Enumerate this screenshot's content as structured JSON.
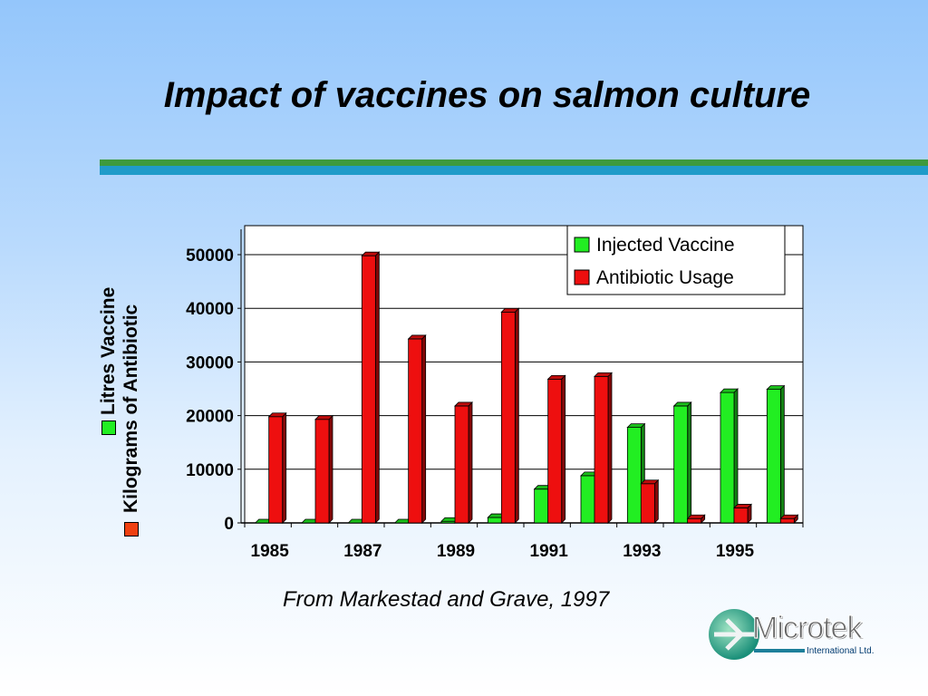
{
  "slide": {
    "title": "Impact of vaccines on salmon culture",
    "source": "From Markestad and Grave, 1997",
    "logo": {
      "name": "Microtek",
      "subtitle": "International Ltd."
    },
    "ylabels": {
      "vaccine": "Litres Vaccine",
      "antibiotic": "Kilograms of Antibiotic"
    }
  },
  "colors": {
    "vaccine": "#22ee22",
    "antibiotic": "#ee0f0f",
    "rule_green": "#3d9a3d",
    "rule_blue": "#1f9bc9"
  },
  "chart_data": {
    "type": "bar",
    "x": [
      1985,
      1986,
      1987,
      1988,
      1989,
      1990,
      1991,
      1992,
      1993,
      1994,
      1995,
      1996
    ],
    "tick_labels": [
      "1985",
      "1987",
      "1989",
      "1991",
      "1993",
      "1995"
    ],
    "yticks": [
      "0",
      "10000",
      "20000",
      "30000",
      "40000",
      "50000"
    ],
    "ylim": [
      0,
      50000
    ],
    "grid": true,
    "legend_position": "top-right",
    "series": [
      {
        "name": "Injected Vaccine",
        "color": "#22ee22",
        "values": [
          0,
          0,
          0,
          0,
          300,
          1000,
          6300,
          8800,
          17800,
          21800,
          24300,
          24900
        ]
      },
      {
        "name": "Antibiotic Usage",
        "color": "#ee0f0f",
        "values": [
          19800,
          19300,
          49800,
          34300,
          21800,
          39300,
          26800,
          27300,
          7300,
          800,
          2800,
          800
        ]
      }
    ]
  }
}
